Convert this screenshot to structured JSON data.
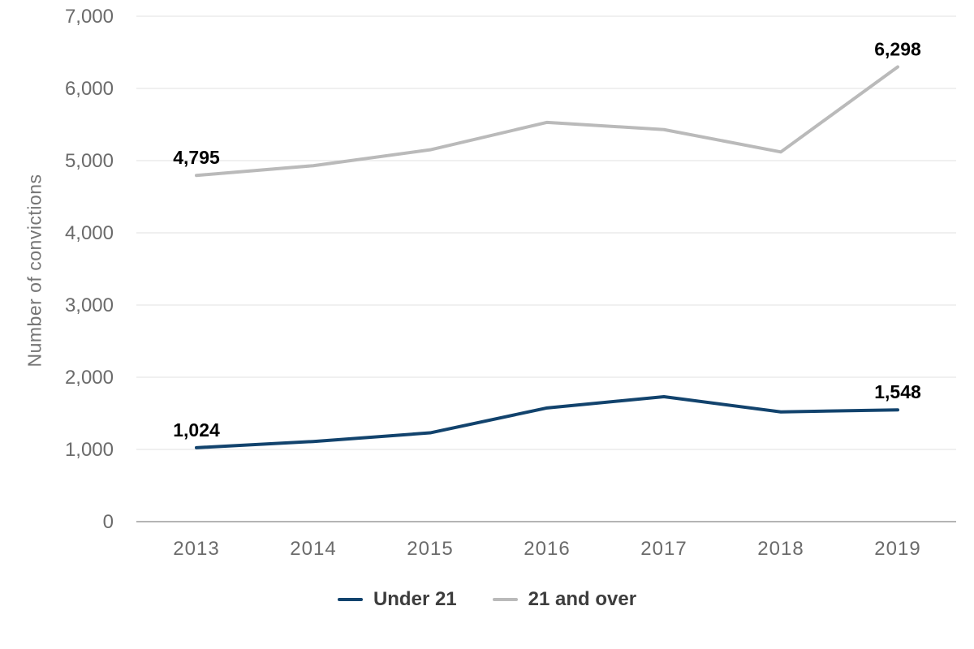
{
  "chart_data": {
    "type": "line",
    "title": "",
    "xlabel": "",
    "ylabel": "Number of convictions",
    "ylim": [
      0,
      7000
    ],
    "ytick_interval": 1000,
    "grid": "horizontal",
    "legend_position": "bottom-center",
    "yticks": [
      {
        "value": 0,
        "label": "0"
      },
      {
        "value": 1000,
        "label": "1,000"
      },
      {
        "value": 2000,
        "label": "2,000"
      },
      {
        "value": 3000,
        "label": "3,000"
      },
      {
        "value": 4000,
        "label": "4,000"
      },
      {
        "value": 5000,
        "label": "5,000"
      },
      {
        "value": 6000,
        "label": "6,000"
      },
      {
        "value": 7000,
        "label": "7,000"
      }
    ],
    "categories": [
      "2013",
      "2014",
      "2015",
      "2016",
      "2017",
      "2018",
      "2019"
    ],
    "series": [
      {
        "name": "Under 21",
        "color": "#12436d",
        "values": [
          1024,
          1110,
          1230,
          1575,
          1730,
          1520,
          1548
        ]
      },
      {
        "name": "21 and over",
        "color": "#bababa",
        "values": [
          4795,
          4930,
          5150,
          5530,
          5430,
          5120,
          6298
        ]
      }
    ],
    "point_labels": [
      {
        "series": 1,
        "point": 0,
        "text": "4,795"
      },
      {
        "series": 1,
        "point": 6,
        "text": "6,298"
      },
      {
        "series": 0,
        "point": 0,
        "text": "1,024"
      },
      {
        "series": 0,
        "point": 6,
        "text": "1,548"
      }
    ]
  },
  "colors": {
    "background": "#ffffff",
    "gridline": "#e7e7e7",
    "axis_line": "#b4b4b4",
    "tick_text": "#6b6b6b",
    "axis_title_text": "#757575",
    "data_label_text": "#000000",
    "legend_text": "#3d3d3d"
  }
}
